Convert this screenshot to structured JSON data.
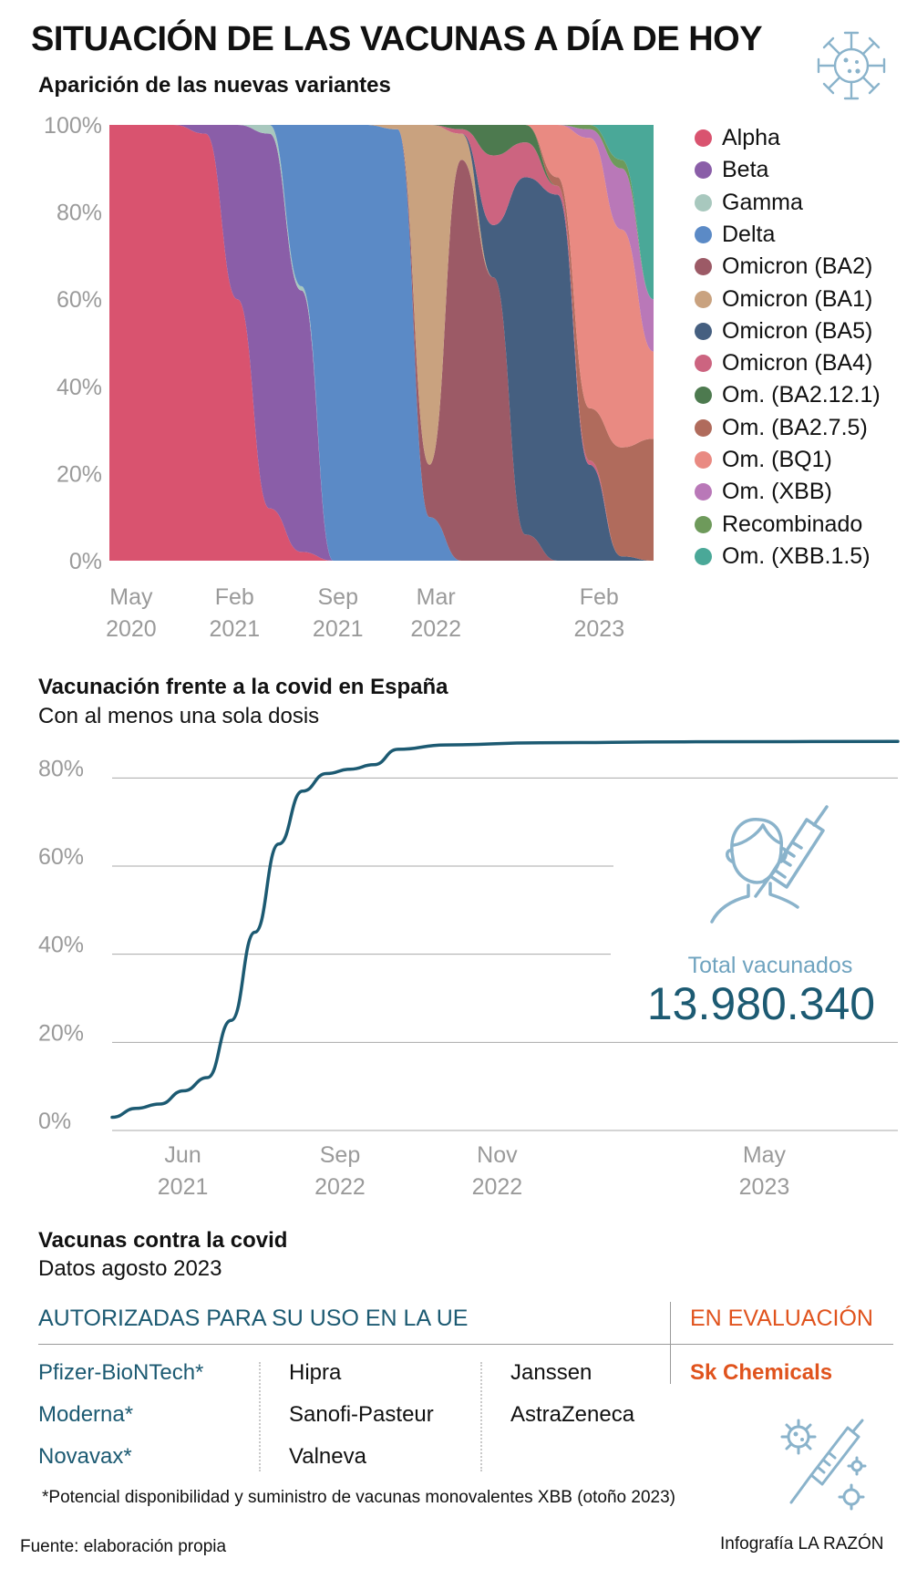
{
  "title": "SITUACIÓN DE LAS VACUNAS A DÍA DE HOY",
  "icons": {
    "virus": "coronavirus-icon",
    "person_syringe": "person-with-syringe-icon",
    "virus_syringe": "virus-syringe-icon"
  },
  "colors": {
    "accent_blue": "#1c5a72",
    "accent_orange": "#e0531d",
    "total_label": "#6fa3bf"
  },
  "variants_chart": {
    "subtitle": "Aparición de las nuevas variantes",
    "chart_data": {
      "type": "area",
      "stacked": true,
      "ylim": [
        0,
        100
      ],
      "y_ticks": [
        "100%",
        "80%",
        "60%",
        "40%",
        "20%",
        "0%"
      ],
      "x_ticks": [
        {
          "month": "May",
          "year": "2020"
        },
        {
          "month": "Feb",
          "year": "2021"
        },
        {
          "month": "Sep",
          "year": "2021"
        },
        {
          "month": "Mar",
          "year": "2022"
        },
        {
          "month": "Feb",
          "year": "2023"
        }
      ],
      "x": [
        "2020-05",
        "2020-07",
        "2020-09",
        "2020-11",
        "2021-01",
        "2021-03",
        "2021-05",
        "2021-07",
        "2021-09",
        "2021-11",
        "2022-01",
        "2022-03",
        "2022-05",
        "2022-07",
        "2022-09",
        "2022-11",
        "2023-01",
        "2023-03"
      ],
      "series": [
        {
          "name": "Alpha",
          "color": "#d9536f",
          "values": [
            100,
            100,
            100,
            98,
            60,
            12,
            2,
            0,
            0,
            0,
            0,
            0,
            0,
            0,
            0,
            0,
            0,
            0
          ]
        },
        {
          "name": "Beta",
          "color": "#8a5ea8",
          "values": [
            0,
            0,
            0,
            2,
            40,
            86,
            60,
            0,
            0,
            0,
            0,
            0,
            0,
            0,
            0,
            0,
            0,
            0
          ]
        },
        {
          "name": "Gamma",
          "color": "#a8c8be",
          "values": [
            0,
            0,
            0,
            0,
            0,
            2,
            1,
            0,
            0,
            0,
            0,
            0,
            0,
            0,
            0,
            0,
            0,
            0
          ]
        },
        {
          "name": "Delta",
          "color": "#5b8ac6",
          "values": [
            0,
            0,
            0,
            0,
            0,
            0,
            37,
            100,
            100,
            99,
            10,
            0,
            0,
            0,
            0,
            0,
            0,
            0
          ]
        },
        {
          "name": "Omicron (BA2)",
          "color": "#9c5a66",
          "values": [
            0,
            0,
            0,
            0,
            0,
            0,
            0,
            0,
            0,
            0,
            12,
            92,
            65,
            6,
            0,
            0,
            0,
            0
          ]
        },
        {
          "name": "Omicron (BA1)",
          "color": "#c9a27f",
          "values": [
            0,
            0,
            0,
            0,
            0,
            0,
            0,
            0,
            0,
            1,
            78,
            6,
            0,
            0,
            0,
            0,
            0,
            0
          ]
        },
        {
          "name": "Omicron (BA5)",
          "color": "#455f80",
          "values": [
            0,
            0,
            0,
            0,
            0,
            0,
            0,
            0,
            0,
            0,
            0,
            0,
            12,
            82,
            84,
            22,
            1,
            0
          ]
        },
        {
          "name": "Omicron (BA4)",
          "color": "#cc6480",
          "values": [
            0,
            0,
            0,
            0,
            0,
            0,
            0,
            0,
            0,
            0,
            0,
            1,
            16,
            8,
            2,
            1,
            0,
            0
          ]
        },
        {
          "name": "Om. (BA2.12.1)",
          "color": "#4d7a4f",
          "values": [
            0,
            0,
            0,
            0,
            0,
            0,
            0,
            0,
            0,
            0,
            0,
            1,
            7,
            4,
            0,
            0,
            0,
            0
          ]
        },
        {
          "name": "Om. (BA2.7.5)",
          "color": "#b06b5c",
          "values": [
            0,
            0,
            0,
            0,
            0,
            0,
            0,
            0,
            0,
            0,
            0,
            0,
            0,
            0,
            2,
            12,
            25,
            28
          ]
        },
        {
          "name": "Om. (BQ1)",
          "color": "#e98a82",
          "values": [
            0,
            0,
            0,
            0,
            0,
            0,
            0,
            0,
            0,
            0,
            0,
            0,
            0,
            0,
            12,
            62,
            50,
            20
          ]
        },
        {
          "name": "Om. (XBB)",
          "color": "#b978b8",
          "values": [
            0,
            0,
            0,
            0,
            0,
            0,
            0,
            0,
            0,
            0,
            0,
            0,
            0,
            0,
            0,
            2,
            14,
            12
          ]
        },
        {
          "name": "Recombinado",
          "color": "#6e9a5b",
          "values": [
            0,
            0,
            0,
            0,
            0,
            0,
            0,
            0,
            0,
            0,
            0,
            0,
            0,
            0,
            0,
            1,
            2,
            0
          ]
        },
        {
          "name": "Om. (XBB.1.5)",
          "color": "#4aa898",
          "values": [
            0,
            0,
            0,
            0,
            0,
            0,
            0,
            0,
            0,
            0,
            0,
            0,
            0,
            0,
            0,
            0,
            8,
            40
          ]
        }
      ]
    }
  },
  "vaccination_chart": {
    "title": "Vacunación frente a la covid en España",
    "subtitle": "Con al menos una sola dosis",
    "total_label": "Total vacunados",
    "total_value": "13.980.340",
    "chart_data": {
      "type": "line",
      "ylim": [
        0,
        90
      ],
      "y_ticks": [
        "80%",
        "60%",
        "40%",
        "20%",
        "0%"
      ],
      "x_ticks": [
        {
          "month": "Jun",
          "year": "2021"
        },
        {
          "month": "Sep",
          "year": "2022"
        },
        {
          "month": "Nov",
          "year": "2022"
        },
        {
          "month": "May",
          "year": "2023"
        }
      ],
      "series": [
        {
          "values": [
            {
              "x": 0,
              "y": 3
            },
            {
              "x": 1,
              "y": 5
            },
            {
              "x": 2,
              "y": 6
            },
            {
              "x": 3,
              "y": 9
            },
            {
              "x": 4,
              "y": 12
            },
            {
              "x": 5,
              "y": 25
            },
            {
              "x": 6,
              "y": 45
            },
            {
              "x": 7,
              "y": 65
            },
            {
              "x": 8,
              "y": 77
            },
            {
              "x": 9,
              "y": 81
            },
            {
              "x": 10,
              "y": 82
            },
            {
              "x": 11,
              "y": 83
            },
            {
              "x": 12,
              "y": 86.5
            },
            {
              "x": 14,
              "y": 87.5
            },
            {
              "x": 18,
              "y": 88
            },
            {
              "x": 24,
              "y": 88.2
            },
            {
              "x": 33,
              "y": 88.3
            }
          ]
        }
      ]
    }
  },
  "vaccines": {
    "title": "Vacunas contra la covid",
    "subtitle": "Datos agosto 2023",
    "authorized_header": "AUTORIZADAS PARA SU USO EN LA UE",
    "evaluation_header": "EN EVALUACIÓN",
    "authorized_col1": [
      "Pfizer-BioNTech*",
      "Moderna*",
      "Novavax*"
    ],
    "authorized_col2": [
      "Hipra",
      "Sanofi-Pasteur",
      "Valneva"
    ],
    "authorized_col3": [
      "Janssen",
      "AstraZeneca"
    ],
    "evaluation": [
      "Sk Chemicals"
    ],
    "footnote": "*Potencial disponibilidad y suministro de vacunas monovalentes XBB (otoño 2023)"
  },
  "footer": {
    "source": "Fuente: elaboración propia",
    "credit": "Infografía LA RAZÓN"
  }
}
